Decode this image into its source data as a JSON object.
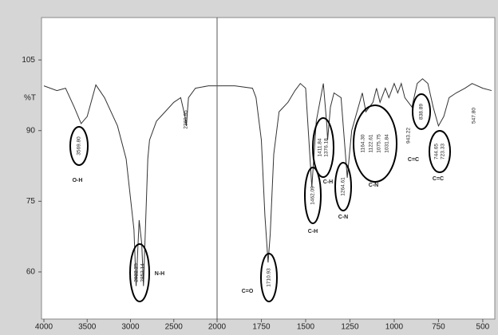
{
  "chart_data": [
    {
      "type": "line",
      "ylabel": "%T",
      "x": [
        4000,
        3850,
        3750,
        3650,
        3570,
        3500,
        3400,
        3300,
        3150,
        3050,
        2960,
        2935,
        2900,
        2870,
        2850,
        2800,
        2780,
        2700,
        2600,
        2500,
        2420,
        2370,
        2355,
        2330,
        2250,
        2100,
        2000
      ],
      "values": [
        99.5,
        98.5,
        99,
        95,
        91.5,
        93,
        99.7,
        97,
        91,
        84,
        69,
        57,
        71,
        66,
        57,
        84,
        88,
        92,
        94,
        96,
        97,
        93,
        91,
        97,
        99,
        99.5,
        99.5
      ],
      "color": "#333333",
      "xlim": [
        4000,
        2000
      ],
      "xticks": [
        4000,
        3500,
        3000,
        2500,
        2000
      ],
      "ylim": [
        50,
        114
      ],
      "yticks": [
        60,
        75,
        90,
        105
      ],
      "annotations": [
        {
          "peaks": [
            "3569.80"
          ],
          "label": "O-H"
        },
        {
          "peaks": [
            "2922.25",
            "2853.14"
          ],
          "label": "N-H"
        },
        {
          "peaks": [
            "2360.95"
          ]
        }
      ]
    },
    {
      "type": "line",
      "x": [
        2000,
        1900,
        1800,
        1780,
        1750,
        1730,
        1712,
        1700,
        1680,
        1650,
        1600,
        1560,
        1530,
        1500,
        1465,
        1440,
        1420,
        1400,
        1380,
        1376,
        1360,
        1340,
        1300,
        1265,
        1240,
        1210,
        1180,
        1160,
        1120,
        1100,
        1080,
        1050,
        1030,
        1000,
        980,
        960,
        940,
        900,
        870,
        840,
        810,
        780,
        750,
        720,
        690,
        650,
        600,
        560,
        500,
        450
      ],
      "values": [
        99.5,
        99.5,
        99,
        97,
        88,
        72,
        62,
        68,
        85,
        94,
        96,
        98.5,
        100,
        99,
        78,
        92,
        96,
        100,
        91,
        88,
        95,
        98,
        97,
        80,
        90,
        94,
        98,
        94,
        96,
        99,
        96,
        99,
        97,
        100,
        98,
        100,
        97,
        95,
        100,
        101,
        100,
        95,
        91,
        93,
        97,
        98,
        99,
        100,
        99,
        98.5
      ],
      "color": "#333333",
      "xlim": [
        2000,
        450
      ],
      "xticks": [
        1750,
        1500,
        1250,
        1000,
        750,
        500
      ],
      "annotations": [
        {
          "peaks": [
            "1710.93"
          ],
          "label": "C=O"
        },
        {
          "peaks": [
            "1462.09"
          ],
          "label": "C-H"
        },
        {
          "peaks": [
            "1411.84",
            "1376.18"
          ],
          "label": "C-H"
        },
        {
          "peaks": [
            "1264.61"
          ],
          "label": "C-N"
        },
        {
          "peaks": [
            "1164.30",
            "1122.61",
            "1075.75",
            "1031.84"
          ],
          "label": "C-N"
        },
        {
          "peaks": [
            "943.22"
          ]
        },
        {
          "peaks": [
            "838.89"
          ],
          "label": "C=C"
        },
        {
          "peaks": [
            "744.65",
            "723.33"
          ],
          "label": "C=C"
        },
        {
          "peaks": [
            "547.80"
          ]
        }
      ]
    }
  ]
}
